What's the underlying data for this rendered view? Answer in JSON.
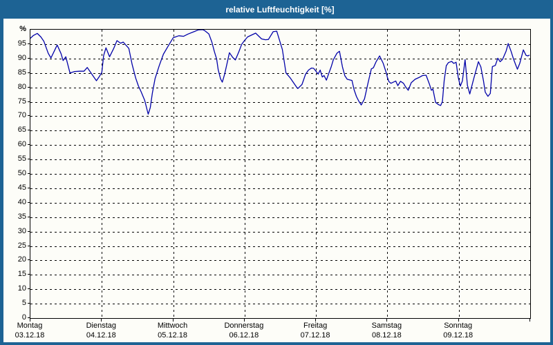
{
  "window": {
    "title": "relative Luftfeuchtigkeit [%]"
  },
  "colors": {
    "titlebar": "#1d6394",
    "window_border": "#1d6394",
    "background": "#fdfdf8",
    "plot_border": "#000000",
    "grid": "#000000",
    "line": "#0000a8",
    "title_text": "#ffffff",
    "axis_text": "#000000"
  },
  "chart_data": {
    "type": "line",
    "title": "relative Luftfeuchtigkeit [%]",
    "ylabel": "%",
    "xlabel": "",
    "legend": "none",
    "grid": "dashed",
    "y_axis": {
      "unit_label": "%",
      "min": 0,
      "max": 100,
      "tick_step": 5,
      "grid_values": [
        95,
        90,
        85,
        80,
        75,
        70,
        65,
        60,
        55,
        50,
        45,
        40,
        35,
        30,
        25,
        20,
        15,
        10,
        5
      ],
      "tick_values": [
        95,
        90,
        85,
        80,
        75,
        70,
        65,
        60,
        55,
        50,
        45,
        40,
        35,
        30,
        25,
        20,
        15,
        10,
        5,
        0
      ]
    },
    "x_axis": {
      "total_hours": 168,
      "days": [
        {
          "name": "Montag",
          "date": "03.12.18"
        },
        {
          "name": "Dienstag",
          "date": "04.12.18"
        },
        {
          "name": "Mittwoch",
          "date": "05.12.18"
        },
        {
          "name": "Donnerstag",
          "date": "06.12.18"
        },
        {
          "name": "Freitag",
          "date": "07.12.18"
        },
        {
          "name": "Samstag",
          "date": "08.12.18"
        },
        {
          "name": "Sonntag",
          "date": "09.12.18"
        }
      ]
    },
    "series": [
      {
        "name": "relative Luftfeuchtigkeit",
        "unit": "%",
        "points": [
          [
            0,
            97.0
          ],
          [
            1,
            98.0
          ],
          [
            2.3,
            98.7
          ],
          [
            3.5,
            97.5
          ],
          [
            4.5,
            96.0
          ],
          [
            6,
            91.8
          ],
          [
            6.9,
            90.2
          ],
          [
            8,
            92.5
          ],
          [
            9,
            94.7
          ],
          [
            10.3,
            91.7
          ],
          [
            11,
            89.3
          ],
          [
            11.9,
            90.6
          ],
          [
            13.3,
            85.0
          ],
          [
            14.9,
            85.5
          ],
          [
            16.5,
            85.6
          ],
          [
            18,
            85.6
          ],
          [
            19.1,
            86.9
          ],
          [
            20.5,
            84.8
          ],
          [
            21.5,
            83.3
          ],
          [
            22.2,
            82.3
          ],
          [
            23.2,
            83.8
          ],
          [
            24,
            85.2
          ],
          [
            24.6,
            91.0
          ],
          [
            25.4,
            93.7
          ],
          [
            26.6,
            90.6
          ],
          [
            28,
            93.5
          ],
          [
            29.1,
            96.2
          ],
          [
            30.3,
            95.3
          ],
          [
            31.2,
            95.7
          ],
          [
            33.1,
            93.5
          ],
          [
            34.2,
            87.9
          ],
          [
            35.4,
            83.2
          ],
          [
            36.3,
            80.5
          ],
          [
            37.2,
            78.5
          ],
          [
            38.4,
            75.5
          ],
          [
            39.6,
            70.7
          ],
          [
            40.3,
            73.0
          ],
          [
            41,
            78.0
          ],
          [
            41.9,
            83.0
          ],
          [
            43.3,
            87.5
          ],
          [
            44.7,
            91.5
          ],
          [
            46.6,
            94.8
          ],
          [
            48,
            97.2
          ],
          [
            49.9,
            97.9
          ],
          [
            51.5,
            97.7
          ],
          [
            53,
            98.5
          ],
          [
            55,
            99.3
          ],
          [
            56.4,
            99.9
          ],
          [
            58,
            100
          ],
          [
            58.7,
            99.6
          ],
          [
            60,
            98.5
          ],
          [
            61,
            95.7
          ],
          [
            61.8,
            92.5
          ],
          [
            62.6,
            89.8
          ],
          [
            63.1,
            86.2
          ],
          [
            63.9,
            83.0
          ],
          [
            64.5,
            81.8
          ],
          [
            65.3,
            84.6
          ],
          [
            66,
            87.8
          ],
          [
            66.9,
            92.0
          ],
          [
            68,
            90.4
          ],
          [
            68.9,
            89.5
          ],
          [
            70,
            92.2
          ],
          [
            71,
            94.9
          ],
          [
            72,
            96.3
          ],
          [
            73,
            97.5
          ],
          [
            75.7,
            98.8
          ],
          [
            77.7,
            96.8
          ],
          [
            79,
            96.5
          ],
          [
            80,
            96.6
          ],
          [
            81.6,
            99.3
          ],
          [
            82.8,
            99.5
          ],
          [
            84.7,
            93.1
          ],
          [
            85.9,
            85.0
          ],
          [
            87.4,
            83.2
          ],
          [
            89.4,
            80.2
          ],
          [
            89.9,
            79.6
          ],
          [
            91.3,
            81.0
          ],
          [
            92.5,
            84.6
          ],
          [
            93.5,
            86.0
          ],
          [
            94.5,
            86.7
          ],
          [
            95.2,
            86.6
          ],
          [
            96,
            85.6
          ],
          [
            96.7,
            84.6
          ],
          [
            97.4,
            86.0
          ],
          [
            98.1,
            83.6
          ],
          [
            98.7,
            84.1
          ],
          [
            99.5,
            82.5
          ],
          [
            100.3,
            84.8
          ],
          [
            101.1,
            87.1
          ],
          [
            101.8,
            89.5
          ],
          [
            103,
            91.8
          ],
          [
            103.9,
            92.5
          ],
          [
            104.9,
            87.1
          ],
          [
            105.7,
            84.0
          ],
          [
            106.5,
            82.8
          ],
          [
            108.1,
            82.4
          ],
          [
            108.8,
            79.2
          ],
          [
            109.6,
            76.8
          ],
          [
            110.4,
            75.2
          ],
          [
            111.2,
            73.9
          ],
          [
            112.3,
            76.0
          ],
          [
            113.5,
            81.6
          ],
          [
            114.6,
            86.4
          ],
          [
            115.3,
            86.8
          ],
          [
            116.2,
            88.9
          ],
          [
            117.4,
            90.9
          ],
          [
            118.6,
            88.3
          ],
          [
            119.7,
            84.8
          ],
          [
            120,
            83.5
          ],
          [
            120.5,
            82.0
          ],
          [
            121.2,
            81.4
          ],
          [
            122.8,
            82.2
          ],
          [
            123.5,
            80.6
          ],
          [
            124.4,
            82.1
          ],
          [
            125.4,
            81.4
          ],
          [
            126.1,
            80.2
          ],
          [
            127,
            79.0
          ],
          [
            128,
            81.6
          ],
          [
            129.3,
            82.8
          ],
          [
            130.6,
            83.4
          ],
          [
            131.8,
            84.1
          ],
          [
            133,
            84.2
          ],
          [
            134.1,
            81.2
          ],
          [
            134.8,
            79.0
          ],
          [
            135.3,
            79.4
          ],
          [
            136.2,
            74.8
          ],
          [
            137.2,
            74.0
          ],
          [
            137.9,
            73.7
          ],
          [
            138.5,
            75.1
          ],
          [
            139.1,
            82.4
          ],
          [
            139.8,
            87.5
          ],
          [
            140.5,
            88.6
          ],
          [
            141.6,
            89.0
          ],
          [
            142.3,
            88.3
          ],
          [
            143.1,
            88.7
          ],
          [
            143.8,
            83.5
          ],
          [
            144.5,
            80.4
          ],
          [
            145.2,
            82.2
          ],
          [
            146.1,
            89.6
          ],
          [
            146.9,
            80.7
          ],
          [
            147.7,
            77.7
          ],
          [
            149,
            82.9
          ],
          [
            150.6,
            88.9
          ],
          [
            151.4,
            87.1
          ],
          [
            152.3,
            82.3
          ],
          [
            152.9,
            78.3
          ],
          [
            153.8,
            76.9
          ],
          [
            154.6,
            77.9
          ],
          [
            155.3,
            87.2
          ],
          [
            156.3,
            87.6
          ],
          [
            157.1,
            90.1
          ],
          [
            157.9,
            88.9
          ],
          [
            158.7,
            89.7
          ],
          [
            159.9,
            92.5
          ],
          [
            160.6,
            95.2
          ],
          [
            161.6,
            92.4
          ],
          [
            162.3,
            90.1
          ],
          [
            163.1,
            87.9
          ],
          [
            163.7,
            86.3
          ],
          [
            164.5,
            88.3
          ],
          [
            165.7,
            93.0
          ],
          [
            166.6,
            91.1
          ],
          [
            167.2,
            90.9
          ],
          [
            167.8,
            91.2
          ]
        ]
      }
    ]
  }
}
